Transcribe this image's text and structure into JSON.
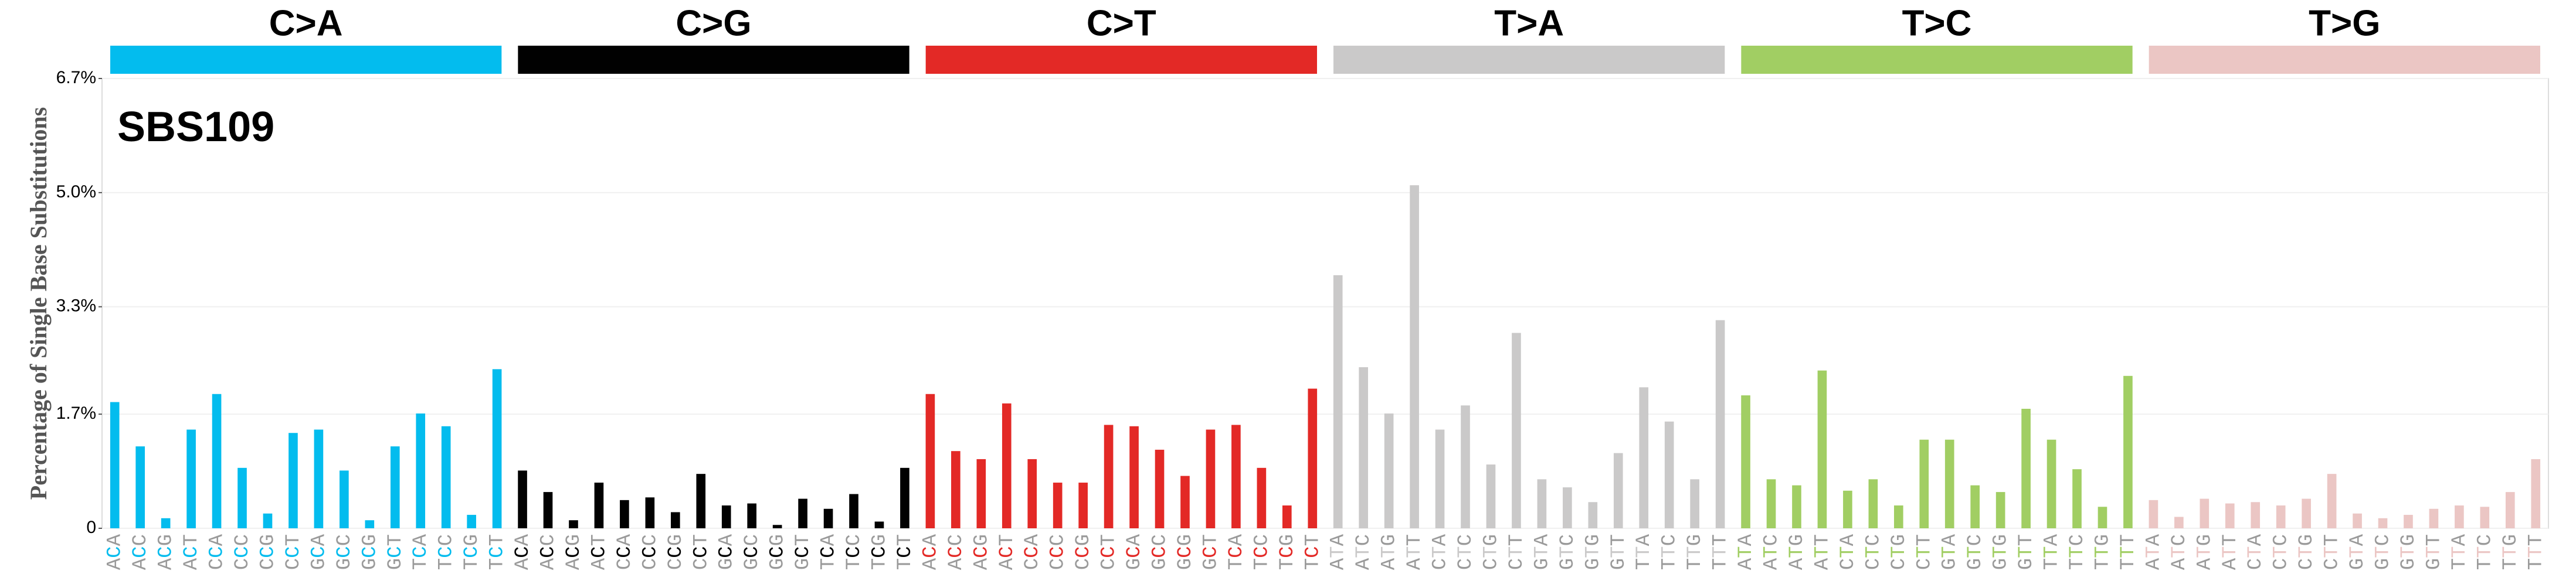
{
  "chart_data": {
    "type": "bar",
    "title": "SBS109",
    "y_label": "Percentage of Single Base Substitutions",
    "groups": [
      {
        "name": "C>A",
        "color": "#03bcee"
      },
      {
        "name": "C>G",
        "color": "#010101"
      },
      {
        "name": "C>T",
        "color": "#e32926"
      },
      {
        "name": "T>A",
        "color": "#cac9c9"
      },
      {
        "name": "T>C",
        "color": "#a1ce63"
      },
      {
        "name": "T>G",
        "color": "#ebc6c4"
      }
    ],
    "categories": [
      "ACA",
      "ACC",
      "ACG",
      "ACT",
      "CCA",
      "CCC",
      "CCG",
      "CCT",
      "GCA",
      "GCC",
      "GCG",
      "GCT",
      "TCA",
      "TCC",
      "TCG",
      "TCT",
      "ACA",
      "ACC",
      "ACG",
      "ACT",
      "CCA",
      "CCC",
      "CCG",
      "CCT",
      "GCA",
      "GCC",
      "GCG",
      "GCT",
      "TCA",
      "TCC",
      "TCG",
      "TCT",
      "ACA",
      "ACC",
      "ACG",
      "ACT",
      "CCA",
      "CCC",
      "CCG",
      "CCT",
      "GCA",
      "GCC",
      "GCG",
      "GCT",
      "TCA",
      "TCC",
      "TCG",
      "TCT",
      "ATA",
      "ATC",
      "ATG",
      "ATT",
      "CTA",
      "CTC",
      "CTG",
      "CTT",
      "GTA",
      "GTC",
      "GTG",
      "GTT",
      "TTA",
      "TTC",
      "TTG",
      "TTT",
      "ATA",
      "ATC",
      "ATG",
      "ATT",
      "CTA",
      "CTC",
      "CTG",
      "CTT",
      "GTA",
      "GTC",
      "GTG",
      "GTT",
      "TTA",
      "TTC",
      "TTG",
      "TTT",
      "ATA",
      "ATC",
      "ATG",
      "ATT",
      "CTA",
      "CTC",
      "CTG",
      "CTT",
      "GTA",
      "GTC",
      "GTG",
      "GTT",
      "TTA",
      "TTC",
      "TTG",
      "TTT"
    ],
    "values": [
      1.88,
      1.22,
      0.15,
      1.47,
      2.0,
      0.9,
      0.22,
      1.42,
      1.47,
      0.86,
      0.12,
      1.22,
      1.71,
      1.52,
      0.2,
      2.37,
      0.86,
      0.54,
      0.12,
      0.68,
      0.42,
      0.46,
      0.24,
      0.81,
      0.34,
      0.37,
      0.05,
      0.44,
      0.29,
      0.51,
      0.1,
      0.9,
      2.0,
      1.15,
      1.03,
      1.86,
      1.03,
      0.68,
      0.68,
      1.54,
      1.52,
      1.17,
      0.78,
      1.47,
      1.54,
      0.9,
      0.34,
      2.08,
      3.77,
      2.4,
      1.71,
      5.11,
      1.47,
      1.83,
      0.95,
      2.91,
      0.73,
      0.61,
      0.39,
      1.12,
      2.1,
      1.59,
      0.73,
      3.1,
      1.98,
      0.73,
      0.64,
      2.35,
      0.56,
      0.73,
      0.34,
      1.32,
      1.32,
      0.64,
      0.54,
      1.78,
      1.32,
      0.88,
      0.32,
      2.27,
      0.42,
      0.17,
      0.44,
      0.37,
      0.39,
      0.34,
      0.44,
      0.81,
      0.22,
      0.15,
      0.2,
      0.29,
      0.34,
      0.32,
      0.54,
      1.03
    ],
    "ylim": [
      0,
      6.7
    ],
    "yticks": [
      {
        "value": 0,
        "label": "0"
      },
      {
        "value": 1.7,
        "label": "1.7%"
      },
      {
        "value": 3.3,
        "label": "3.3%"
      },
      {
        "value": 5.0,
        "label": "5.0%"
      },
      {
        "value": 6.7,
        "label": "6.7%"
      }
    ],
    "grid": true,
    "flank_color": "#9a9a9a"
  }
}
